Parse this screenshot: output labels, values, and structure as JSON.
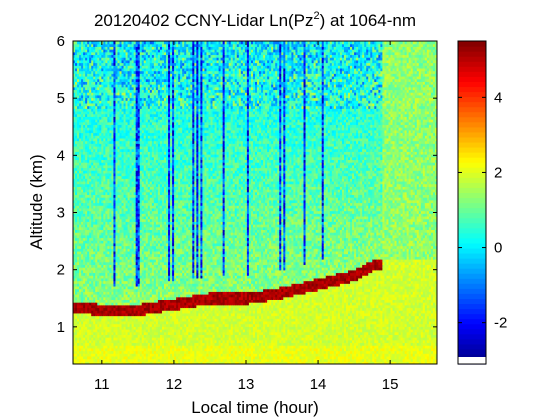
{
  "chart_data": {
    "type": "heatmap",
    "title": "20120402 CCNY-Lidar Ln(Pz",
    "title_superscript": "2",
    "title_suffix": ") at 1064-nm",
    "xlabel": "Local time (hour)",
    "ylabel": "Altitude (km)",
    "xlim": [
      10.6,
      15.65
    ],
    "ylim": [
      0.35,
      6.0
    ],
    "xticks": [
      11,
      12,
      13,
      14,
      15
    ],
    "xtick_labels": [
      "11",
      "12",
      "13",
      "14",
      "15"
    ],
    "yticks": [
      1,
      2,
      3,
      4,
      5,
      6
    ],
    "ytick_labels": [
      "1",
      "2",
      "3",
      "4",
      "5",
      "6"
    ],
    "colorbar": {
      "colormap": "jet",
      "clim": [
        -3.1,
        5.5
      ],
      "ticks": [
        -2,
        0,
        2,
        4
      ],
      "tick_labels": [
        "-2",
        "0",
        "2",
        "4"
      ]
    },
    "grid": false,
    "cloud_layer_top_km": [
      {
        "x": 10.65,
        "y": 1.45
      },
      {
        "x": 11.0,
        "y": 1.4
      },
      {
        "x": 11.5,
        "y": 1.4
      },
      {
        "x": 12.0,
        "y": 1.5
      },
      {
        "x": 12.5,
        "y": 1.6
      },
      {
        "x": 13.0,
        "y": 1.6
      },
      {
        "x": 13.5,
        "y": 1.7
      },
      {
        "x": 14.0,
        "y": 1.85
      },
      {
        "x": 14.5,
        "y": 2.0
      },
      {
        "x": 14.8,
        "y": 2.2
      }
    ]
  },
  "colors": {
    "background_field": "#8fd06a",
    "noise_region": "#3fb9d6",
    "cloud_layer": "#8b0000",
    "surface_layer": "#c8e03a"
  }
}
